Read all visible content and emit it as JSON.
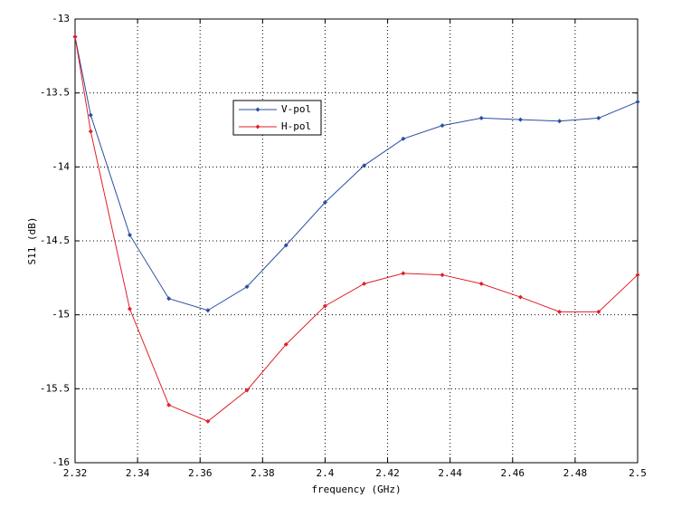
{
  "chart_data": {
    "type": "line",
    "x_label": "frequency (GHz)",
    "y_label": "S11 (dB)",
    "x": [
      2.32,
      2.325,
      2.3375,
      2.35,
      2.3625,
      2.375,
      2.3875,
      2.4,
      2.4125,
      2.425,
      2.4375,
      2.45,
      2.4625,
      2.475,
      2.4875,
      2.5
    ],
    "series": [
      {
        "name": "V-pol",
        "color": "#2a4fa0",
        "values": [
          -13.12,
          -13.65,
          -14.46,
          -14.89,
          -14.97,
          -14.81,
          -14.53,
          -14.24,
          -13.99,
          -13.81,
          -13.72,
          -13.67,
          -13.68,
          -13.69,
          -13.67,
          -13.56
        ]
      },
      {
        "name": "H-pol",
        "color": "#e0202a",
        "values": [
          -13.12,
          -13.76,
          -14.96,
          -15.61,
          -15.72,
          -15.51,
          -15.2,
          -14.94,
          -14.79,
          -14.72,
          -14.73,
          -14.79,
          -14.88,
          -14.98,
          -14.98,
          -14.73
        ]
      }
    ],
    "xlim": [
      2.32,
      2.5
    ],
    "xticks": [
      2.32,
      2.34,
      2.36,
      2.38,
      2.4,
      2.42,
      2.44,
      2.46,
      2.48,
      2.5
    ],
    "ylim": [
      -16,
      -13
    ],
    "yticks": [
      -16,
      -15.5,
      -15,
      -14.5,
      -14,
      -13.5,
      -13
    ],
    "grid": true,
    "legend": "upper-left"
  }
}
